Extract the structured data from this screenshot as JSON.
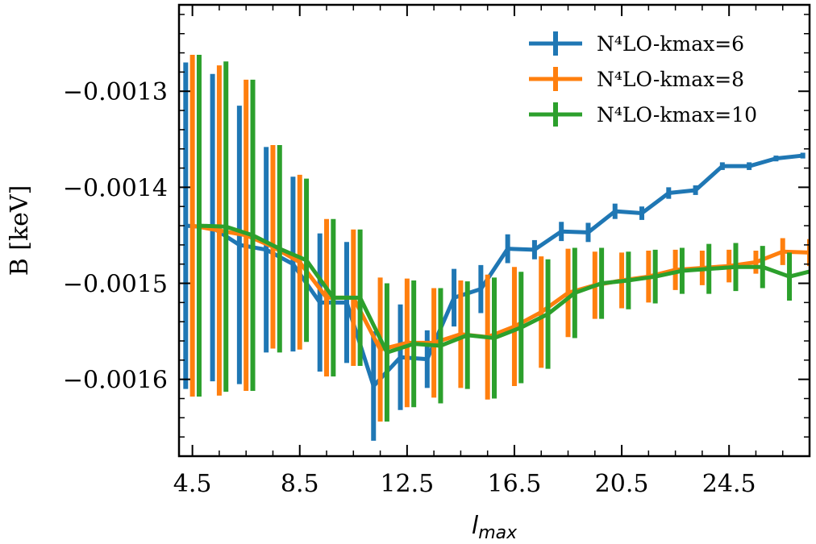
{
  "chart_data": {
    "type": "line",
    "title": "",
    "xlabel": "l",
    "xlabel_sub": "max",
    "ylabel": "B [keV]",
    "xlim": [
      4,
      27.5
    ],
    "ylim": [
      -0.00168,
      -0.00121
    ],
    "x_ticks": [
      4.5,
      8.5,
      12.5,
      16.5,
      20.5,
      24.5
    ],
    "x_tick_labels": [
      "4.5",
      "8.5",
      "12.5",
      "16.5",
      "20.5",
      "24.5"
    ],
    "y_ticks": [
      -0.0013,
      -0.0014,
      -0.0015,
      -0.0016
    ],
    "y_tick_labels": [
      "−0.0013",
      "−0.0014",
      "−0.0015",
      "−0.0016"
    ],
    "grid": false,
    "legend_position": "top-right",
    "x": [
      4.5,
      5.5,
      6.5,
      7.5,
      8.5,
      9.5,
      10.5,
      11.5,
      12.5,
      13.5,
      14.5,
      15.5,
      16.5,
      17.5,
      18.5,
      19.5,
      20.5,
      21.5,
      22.5,
      23.5,
      24.5,
      25.5,
      26.5,
      27.5
    ],
    "series": [
      {
        "name": "N⁴LO-kmax=6",
        "color": "#1f77b4",
        "offset": -0.25,
        "values": [
          -0.00144,
          -0.001442,
          -0.00146,
          -0.001465,
          -0.00148,
          -0.00152,
          -0.00152,
          -0.001607,
          -0.001577,
          -0.001579,
          -0.001515,
          -0.001506,
          -0.001464,
          -0.001465,
          -0.001446,
          -0.001447,
          -0.001425,
          -0.001427,
          -0.001406,
          -0.001403,
          -0.001378,
          -0.001378,
          -0.00137,
          -0.001367
        ],
        "errors": [
          0.00017,
          0.00016,
          0.000145,
          0.000107,
          9.1e-05,
          7.2e-05,
          6.3e-05,
          5.7e-05,
          5.5e-05,
          3e-05,
          3e-05,
          2.5e-05,
          1.5e-05,
          1e-05,
          1e-05,
          1e-05,
          8e-06,
          7e-06,
          6e-06,
          5e-06,
          4e-06,
          4e-06,
          3e-06,
          3e-06
        ]
      },
      {
        "name": "N⁴LO-kmax=8",
        "color": "#ff7f0e",
        "offset": 0.0,
        "values": [
          -0.00144,
          -0.001445,
          -0.00145,
          -0.001462,
          -0.001478,
          -0.001515,
          -0.001515,
          -0.001569,
          -0.001562,
          -0.001562,
          -0.001553,
          -0.001556,
          -0.001545,
          -0.00153,
          -0.00151,
          -0.001502,
          -0.001497,
          -0.001493,
          -0.001486,
          -0.001484,
          -0.001482,
          -0.001478,
          -0.001467,
          -0.001468
        ],
        "errors": [
          0.000178,
          0.000172,
          0.000162,
          0.000106,
          9.1e-05,
          8.2e-05,
          7.1e-05,
          7.5e-05,
          6.7e-05,
          5.7e-05,
          5.6e-05,
          6.5e-05,
          6.2e-05,
          5.8e-05,
          4.6e-05,
          3.5e-05,
          2.9e-05,
          2.7e-05,
          2.1e-05,
          1.8e-05,
          1.7e-05,
          1.2e-05,
          1.4e-05,
          1.4e-05
        ]
      },
      {
        "name": "N⁴LO-kmax=10",
        "color": "#2ca02c",
        "offset": 0.25,
        "values": [
          -0.00144,
          -0.001441,
          -0.00145,
          -0.001464,
          -0.001476,
          -0.001515,
          -0.001515,
          -0.001572,
          -0.001563,
          -0.001565,
          -0.001554,
          -0.001557,
          -0.001546,
          -0.001532,
          -0.00151,
          -0.0015,
          -0.001497,
          -0.001493,
          -0.001487,
          -0.001485,
          -0.001483,
          -0.001483,
          -0.001493,
          -0.001486
        ],
        "errors": [
          0.000178,
          0.000172,
          0.000162,
          0.000108,
          8.5e-05,
          8.2e-05,
          7.1e-05,
          7.2e-05,
          6.6e-05,
          6e-05,
          5.6e-05,
          6.3e-05,
          5.8e-05,
          5.7e-05,
          4.7e-05,
          3.7e-05,
          3e-05,
          2.8e-05,
          2.4e-05,
          2.6e-05,
          2.5e-05,
          2.2e-05,
          2.5e-05,
          2.6e-05
        ]
      }
    ]
  }
}
